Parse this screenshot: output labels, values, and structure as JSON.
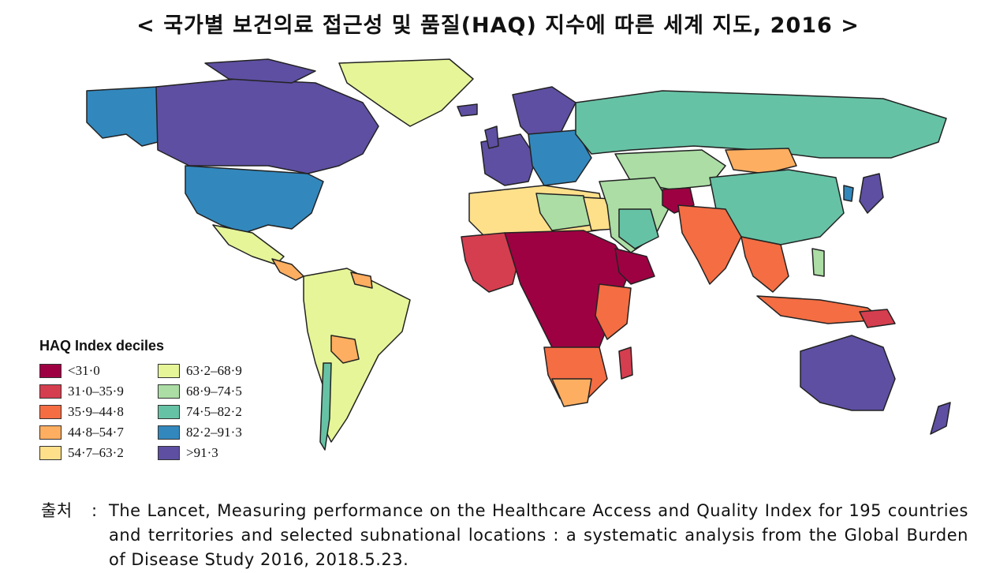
{
  "title": "< 국가별 보건의료 접근성 및 품질(HAQ) 지수에 따른 세계 지도, 2016 >",
  "legend": {
    "title": "HAQ Index deciles",
    "items": [
      {
        "label": "<31·0",
        "color": "#9e0142"
      },
      {
        "label": "31·0–35·9",
        "color": "#d53e4f"
      },
      {
        "label": "35·9–44·8",
        "color": "#f46d43"
      },
      {
        "label": "44·8–54·7",
        "color": "#fdae61"
      },
      {
        "label": "54·7–63·2",
        "color": "#fee08b"
      },
      {
        "label": "63·2–68·9",
        "color": "#e6f598"
      },
      {
        "label": "68·9–74·5",
        "color": "#abdda4"
      },
      {
        "label": "74·5–82·2",
        "color": "#66c2a5"
      },
      {
        "label": "82·2–91·3",
        "color": "#3288bd"
      },
      {
        "label": ">91·3",
        "color": "#5e4fa2"
      }
    ]
  },
  "source": {
    "label": "출처",
    "separator": ":",
    "text": "The Lancet, Measuring performance on the Healthcare Access and Quality Index for 195 countries and territories and selected subnational locations : a systematic analysis from the Global Burden of Disease Study 2016, 2018.5.23."
  }
}
